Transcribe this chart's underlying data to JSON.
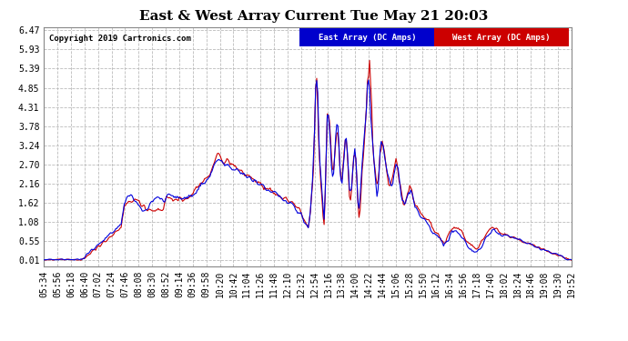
{
  "title": "East & West Array Current Tue May 21 20:03",
  "copyright": "Copyright 2019 Cartronics.com",
  "legend_east": "East Array (DC Amps)",
  "legend_west": "West Array (DC Amps)",
  "east_color": "#0000dd",
  "west_color": "#cc0000",
  "legend_east_bg": "#0000cc",
  "legend_west_bg": "#cc0000",
  "yticks": [
    0.01,
    0.55,
    1.08,
    1.62,
    2.16,
    2.7,
    3.24,
    3.78,
    4.31,
    4.85,
    5.39,
    5.93,
    6.47
  ],
  "ylim_min": -0.15,
  "ylim_max": 6.55,
  "xtick_labels": [
    "05:34",
    "05:56",
    "06:18",
    "06:40",
    "07:02",
    "07:24",
    "07:46",
    "08:08",
    "08:30",
    "08:52",
    "09:14",
    "09:36",
    "09:58",
    "10:20",
    "10:42",
    "11:04",
    "11:26",
    "11:48",
    "12:10",
    "12:32",
    "12:54",
    "13:16",
    "13:38",
    "14:00",
    "14:22",
    "14:44",
    "15:06",
    "15:28",
    "15:50",
    "16:12",
    "16:34",
    "16:56",
    "17:18",
    "17:40",
    "18:02",
    "18:24",
    "18:46",
    "19:08",
    "19:30",
    "19:52"
  ],
  "background_color": "#ffffff",
  "grid_color": "#bbbbbb",
  "title_fontsize": 11,
  "tick_fontsize": 7,
  "linewidth": 0.8
}
